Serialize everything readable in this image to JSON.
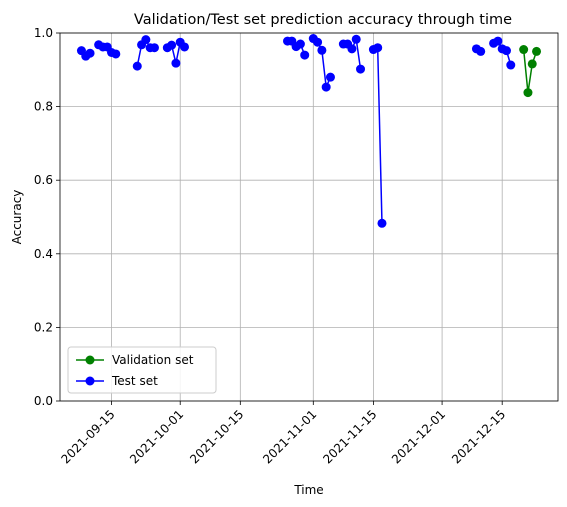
{
  "chart_data": {
    "type": "line",
    "title": "Validation/Test set prediction accuracy through time",
    "xlabel": "Time",
    "ylabel": "Accuracy",
    "xlim": [
      "2021-09-03",
      "2021-12-28"
    ],
    "ylim": [
      0,
      1
    ],
    "x_ticks": [
      "2021-09-15",
      "2021-10-01",
      "2021-10-15",
      "2021-11-01",
      "2021-11-15",
      "2021-12-01",
      "2021-12-15"
    ],
    "y_ticks": [
      0.0,
      0.2,
      0.4,
      0.6,
      0.8,
      1.0
    ],
    "y_tick_labels": [
      "0.0",
      "0.2",
      "0.4",
      "0.6",
      "0.8",
      "1.0"
    ],
    "grid": true,
    "legend_position": "lower-left",
    "series": [
      {
        "name": "Validation set",
        "color": "#008000",
        "points": [
          {
            "x": "2021-12-20",
            "y": 0.955
          },
          {
            "x": "2021-12-21",
            "y": 0.838
          },
          {
            "x": "2021-12-22",
            "y": 0.916
          },
          {
            "x": "2021-12-23",
            "y": 0.95
          }
        ]
      },
      {
        "name": "Test set",
        "color": "#0000ff",
        "segments": [
          [
            {
              "x": "2021-09-08",
              "y": 0.952
            },
            {
              "x": "2021-09-09",
              "y": 0.937
            }
          ],
          [
            {
              "x": "2021-09-10",
              "y": 0.945
            }
          ],
          [
            {
              "x": "2021-09-12",
              "y": 0.968
            },
            {
              "x": "2021-09-13",
              "y": 0.962
            },
            {
              "x": "2021-09-14",
              "y": 0.962
            },
            {
              "x": "2021-09-15",
              "y": 0.947
            },
            {
              "x": "2021-09-16",
              "y": 0.943
            }
          ],
          [
            {
              "x": "2021-09-21",
              "y": 0.91
            },
            {
              "x": "2021-09-22",
              "y": 0.968
            },
            {
              "x": "2021-09-23",
              "y": 0.982
            },
            {
              "x": "2021-09-24",
              "y": 0.96
            },
            {
              "x": "2021-09-25",
              "y": 0.96
            }
          ],
          [
            {
              "x": "2021-09-28",
              "y": 0.96
            },
            {
              "x": "2021-09-29",
              "y": 0.967
            },
            {
              "x": "2021-09-30",
              "y": 0.918
            },
            {
              "x": "2021-10-01",
              "y": 0.975
            },
            {
              "x": "2021-10-02",
              "y": 0.962
            }
          ],
          [
            {
              "x": "2021-10-26",
              "y": 0.978
            },
            {
              "x": "2021-10-27",
              "y": 0.978
            },
            {
              "x": "2021-10-28",
              "y": 0.963
            },
            {
              "x": "2021-10-29",
              "y": 0.97
            },
            {
              "x": "2021-10-30",
              "y": 0.94
            }
          ],
          [
            {
              "x": "2021-11-01",
              "y": 0.985
            },
            {
              "x": "2021-11-02",
              "y": 0.975
            },
            {
              "x": "2021-11-03",
              "y": 0.953
            },
            {
              "x": "2021-11-04",
              "y": 0.853
            },
            {
              "x": "2021-11-05",
              "y": 0.88
            }
          ],
          [
            {
              "x": "2021-11-08",
              "y": 0.97
            },
            {
              "x": "2021-11-09",
              "y": 0.97
            },
            {
              "x": "2021-11-10",
              "y": 0.957
            },
            {
              "x": "2021-11-11",
              "y": 0.983
            },
            {
              "x": "2021-11-12",
              "y": 0.902
            }
          ],
          [
            {
              "x": "2021-11-15",
              "y": 0.955
            },
            {
              "x": "2021-11-16",
              "y": 0.96
            },
            {
              "x": "2021-11-17",
              "y": 0.483
            }
          ],
          [
            {
              "x": "2021-12-09",
              "y": 0.957
            },
            {
              "x": "2021-12-10",
              "y": 0.95
            }
          ],
          [
            {
              "x": "2021-12-13",
              "y": 0.972
            },
            {
              "x": "2021-12-14",
              "y": 0.978
            },
            {
              "x": "2021-12-15",
              "y": 0.957
            },
            {
              "x": "2021-12-16",
              "y": 0.952
            },
            {
              "x": "2021-12-17",
              "y": 0.913
            }
          ]
        ]
      }
    ]
  }
}
